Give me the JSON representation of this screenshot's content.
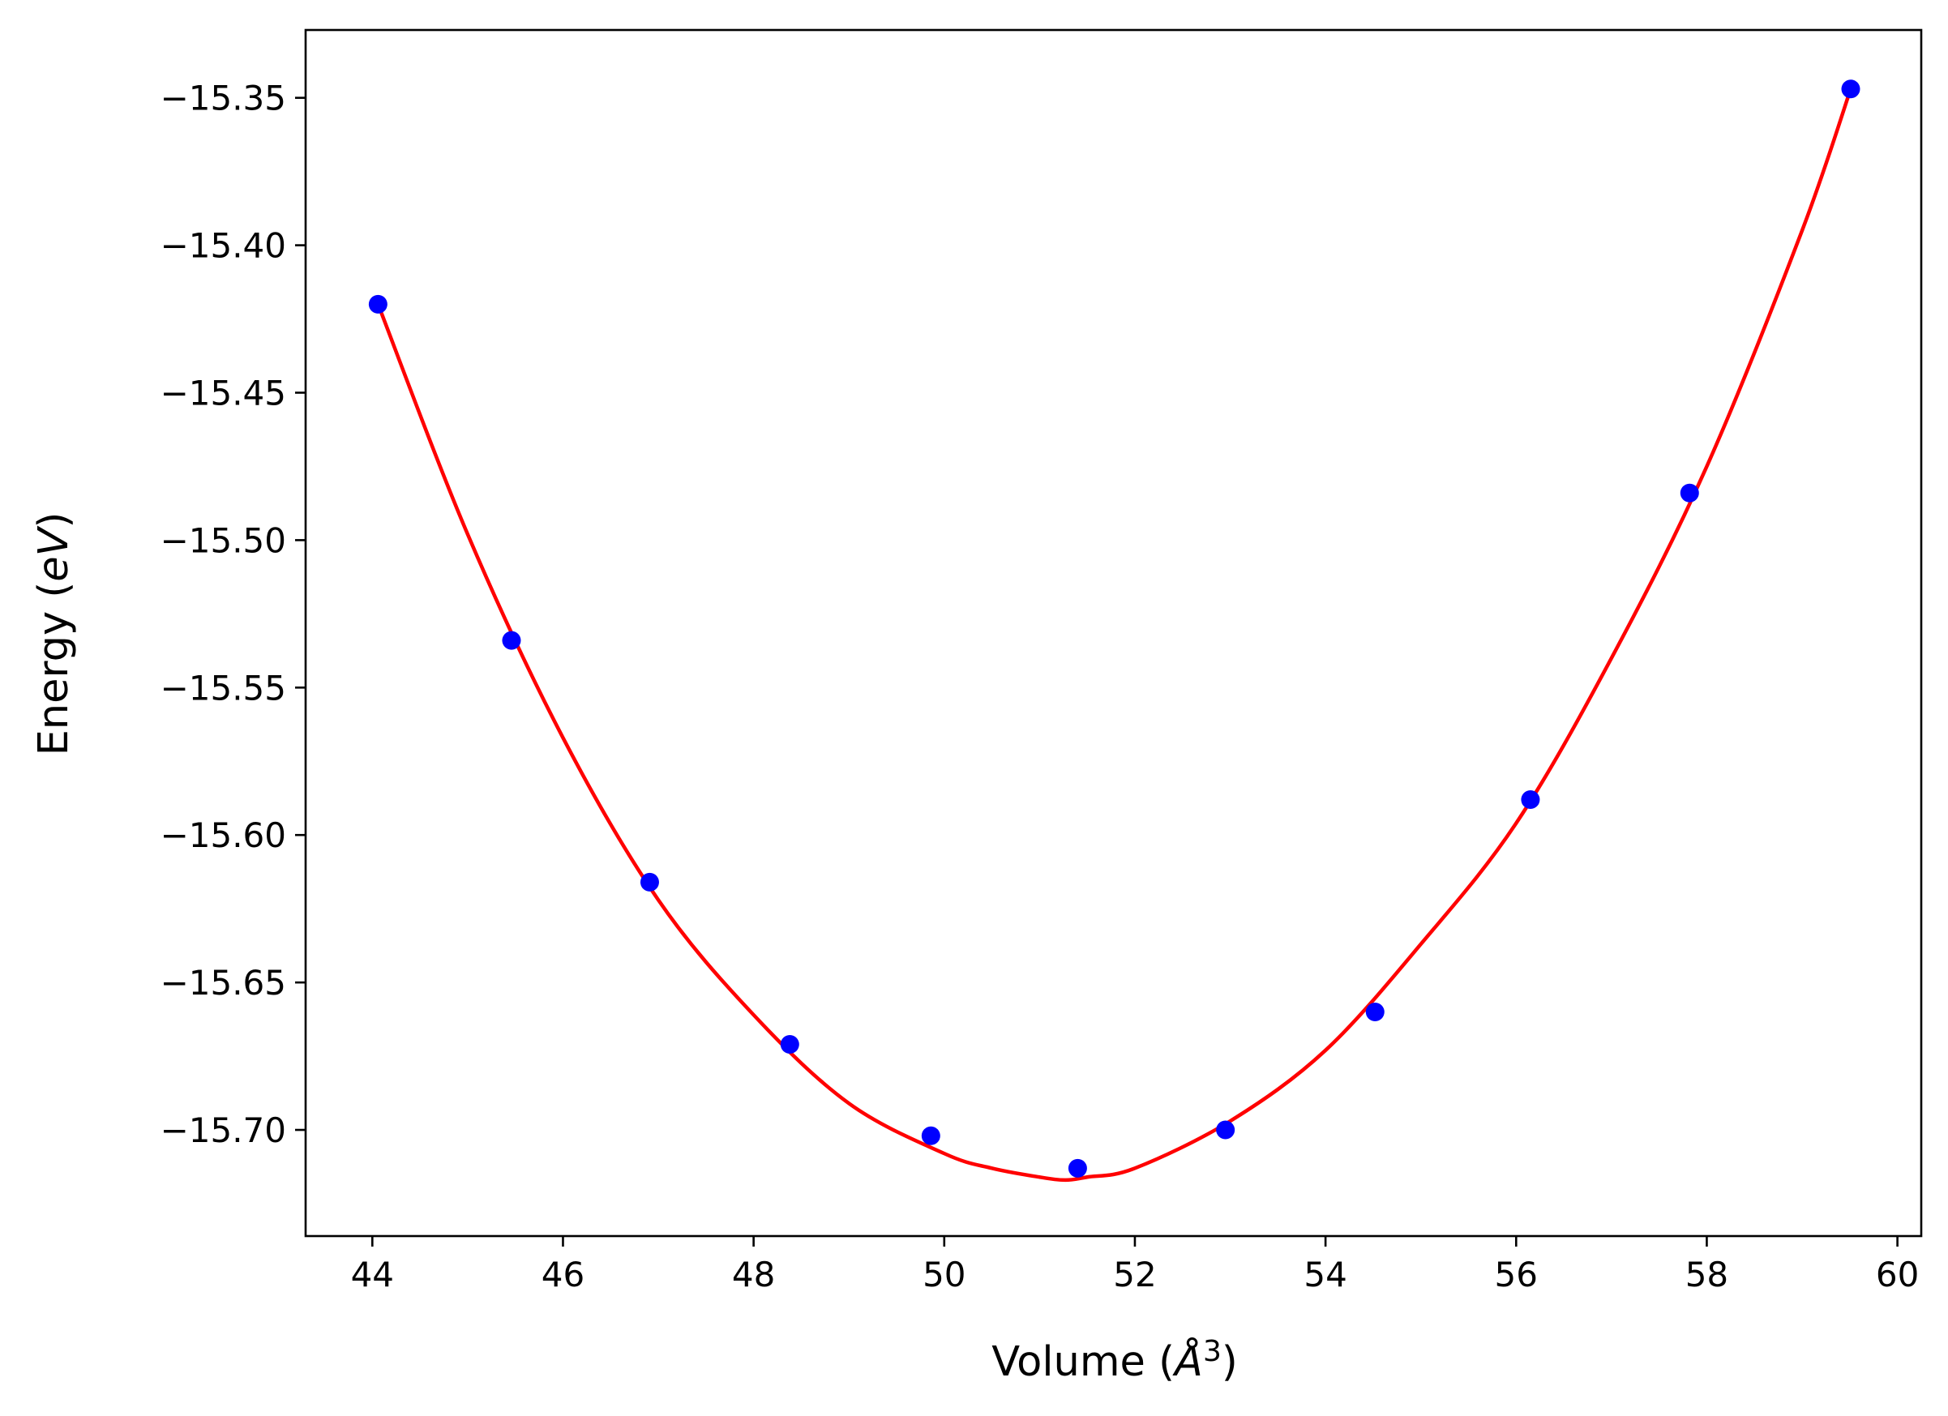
{
  "chart_data": {
    "type": "scatter",
    "xlabel": "Volume (Å³)",
    "xlabel_parts": {
      "prefix": "Volume (",
      "symbol": "Å",
      "power": "3",
      "suffix": ")"
    },
    "ylabel": "Energy (eV)",
    "ylabel_parts": {
      "prefix": "Energy (",
      "unit": "eV",
      "suffix": ")"
    },
    "xlim": [
      43.3,
      60.25
    ],
    "ylim": [
      -15.736,
      -15.327
    ],
    "x_ticks": [
      44,
      46,
      48,
      50,
      52,
      54,
      56,
      58,
      60
    ],
    "y_ticks": [
      -15.35,
      -15.4,
      -15.45,
      -15.5,
      -15.55,
      -15.6,
      -15.65,
      -15.7
    ],
    "x_tick_labels": [
      "44",
      "46",
      "48",
      "50",
      "52",
      "54",
      "56",
      "58",
      "60"
    ],
    "y_tick_labels": [
      "−15.35",
      "−15.40",
      "−15.45",
      "−15.50",
      "−15.55",
      "−15.60",
      "−15.65",
      "−15.70"
    ],
    "grid": false,
    "series": [
      {
        "kind": "points",
        "color": "#0000ff",
        "x": [
          44.06,
          45.46,
          46.91,
          48.38,
          49.86,
          51.4,
          52.95,
          54.52,
          56.15,
          57.82,
          59.51
        ],
        "y": [
          -15.42,
          -15.534,
          -15.616,
          -15.671,
          -15.702,
          -15.713,
          -15.7,
          -15.66,
          -15.588,
          -15.484,
          -15.347
        ]
      },
      {
        "kind": "line",
        "color": "#ff0000",
        "x": [
          44.06,
          45.0,
          46.0,
          47.0,
          48.0,
          49.0,
          50.0,
          50.5,
          51.0,
          51.27,
          51.5,
          52.0,
          53.0,
          54.0,
          55.0,
          56.0,
          57.0,
          58.0,
          59.0,
          59.51
        ],
        "y": [
          -15.42,
          -15.498,
          -15.567,
          -15.622,
          -15.661,
          -15.691,
          -15.708,
          -15.713,
          -15.716,
          -15.717,
          -15.716,
          -15.713,
          -15.697,
          -15.673,
          -15.637,
          -15.596,
          -15.54,
          -15.475,
          -15.395,
          -15.347
        ]
      }
    ]
  }
}
